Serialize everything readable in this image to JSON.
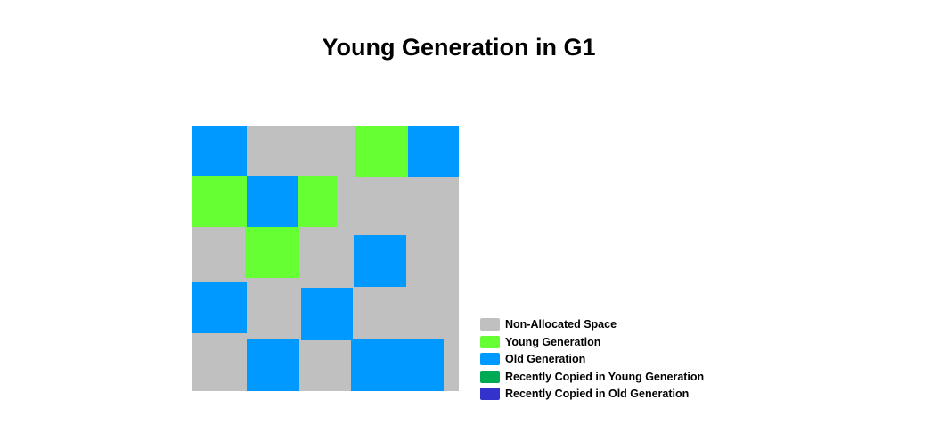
{
  "title": "Young Generation in G1",
  "colors": {
    "non_allocated": "#c0c0c0",
    "young": "#66ff33",
    "old": "#0099ff",
    "recent_young": "#00aa55",
    "recent_old": "#3333cc"
  },
  "grid": {
    "region_types": [
      "old",
      "young"
    ],
    "regions": [
      {
        "type": "old"
      },
      {
        "type": "young"
      },
      {
        "type": "old"
      },
      {
        "type": "young"
      },
      {
        "type": "old"
      },
      {
        "type": "young"
      },
      {
        "type": "young"
      },
      {
        "type": "old"
      },
      {
        "type": "old"
      },
      {
        "type": "old"
      },
      {
        "type": "old"
      },
      {
        "type": "old"
      },
      {
        "type": "old"
      }
    ]
  },
  "legend": [
    {
      "label": "Non-Allocated Space",
      "color": "#c0c0c0"
    },
    {
      "label": "Young Generation",
      "color": "#66ff33"
    },
    {
      "label": "Old Generation",
      "color": "#0099ff"
    },
    {
      "label": "Recently Copied in Young Generation",
      "color": "#00aa55"
    },
    {
      "label": "Recently Copied in Old Generation",
      "color": "#3333cc"
    }
  ]
}
